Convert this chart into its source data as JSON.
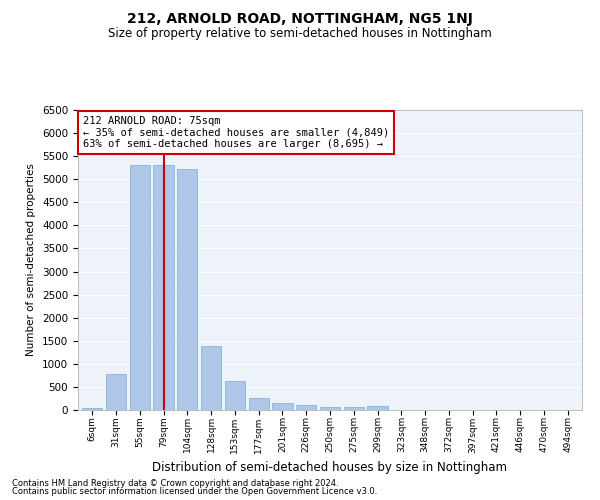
{
  "title": "212, ARNOLD ROAD, NOTTINGHAM, NG5 1NJ",
  "subtitle": "Size of property relative to semi-detached houses in Nottingham",
  "xlabel": "Distribution of semi-detached houses by size in Nottingham",
  "ylabel": "Number of semi-detached properties",
  "categories": [
    "6sqm",
    "31sqm",
    "55sqm",
    "79sqm",
    "104sqm",
    "128sqm",
    "153sqm",
    "177sqm",
    "201sqm",
    "226sqm",
    "250sqm",
    "275sqm",
    "299sqm",
    "323sqm",
    "348sqm",
    "372sqm",
    "397sqm",
    "421sqm",
    "446sqm",
    "470sqm",
    "494sqm"
  ],
  "values": [
    50,
    775,
    5300,
    5300,
    5225,
    1380,
    625,
    265,
    150,
    100,
    75,
    65,
    80,
    0,
    0,
    0,
    0,
    0,
    0,
    0,
    0
  ],
  "bar_color": "#aec6e8",
  "bar_edge_color": "#7aacd4",
  "vline_x": 3,
  "vline_color": "#cc0000",
  "annotation_text": "212 ARNOLD ROAD: 75sqm\n← 35% of semi-detached houses are smaller (4,849)\n63% of semi-detached houses are larger (8,695) →",
  "ylim": [
    0,
    6500
  ],
  "yticks": [
    0,
    500,
    1000,
    1500,
    2000,
    2500,
    3000,
    3500,
    4000,
    4500,
    5000,
    5500,
    6000,
    6500
  ],
  "background_color": "#eef2f9",
  "grid_color": "#ffffff",
  "footer_line1": "Contains HM Land Registry data © Crown copyright and database right 2024.",
  "footer_line2": "Contains public sector information licensed under the Open Government Licence v3.0."
}
